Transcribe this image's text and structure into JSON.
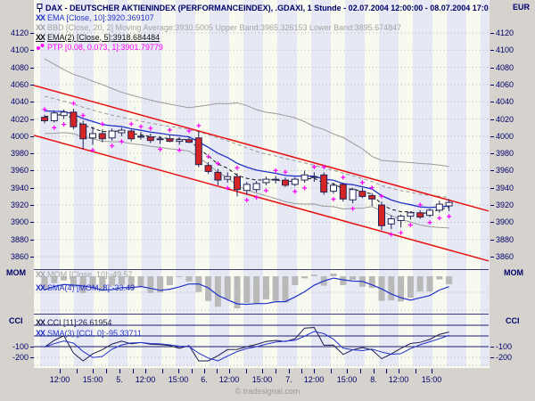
{
  "window": {
    "currency_label": "EUR",
    "copyright": "© tradesignal.com"
  },
  "header": {
    "title": "DAX - DEUTSCHER AKTIENINDEX (PERFORMANCEINDEX), .GDAXI, 1 Stunde - 02.07.2004 12:00:00 - 08.07.2004 17:0",
    "legend": [
      {
        "icon": "line-style-icon",
        "color": "#2130c8",
        "text": "EMA [Close, 10]:3920.369107"
      },
      {
        "icon": "line-style-icon",
        "color": "#a4a4a4",
        "text": "BBD [Close, 20, 2] Moving Average:3930.5005 Upper Band:3965.326153 Lower Band:3895.674847"
      },
      {
        "icon": "line-style-icon",
        "color": "#111111",
        "text": "EMA(2) [Close, 5]:3918.684484"
      },
      {
        "icon": "ptp-dots-icon",
        "color": "#ff00ff",
        "text": "PTP [0.08, 0.073, 1]:3901.79779"
      }
    ]
  },
  "panels": {
    "mom": {
      "label": "MOM",
      "rows": [
        {
          "color": "#a4a4a4",
          "text": "MOM [Close, 10]:-49.57"
        },
        {
          "color": "#2130c8",
          "text": "SMA(4) [MOM, 8]:-33.49"
        }
      ]
    },
    "cci": {
      "label": "CCI",
      "rows": [
        {
          "color": "#1c1c50",
          "text": "CCI [11]:26.61954"
        },
        {
          "color": "#2233cc",
          "text": "SMA(3) [CCI, 0]:-95.33711"
        }
      ],
      "ticks": [
        "-100",
        "-200"
      ]
    }
  },
  "axes": {
    "price_ticks": [
      "4120",
      "4100",
      "4080",
      "4060",
      "4040",
      "4020",
      "4000",
      "3980",
      "3960",
      "3940",
      "3920",
      "3900",
      "3880",
      "3860"
    ],
    "time_labels": [
      "12:00",
      "15:00",
      "5.",
      "12:00",
      "15:00",
      "6.",
      "12:00",
      "15:00",
      "7.",
      "12:00",
      "15:00",
      "8.",
      "12:00",
      "15:00"
    ]
  },
  "chart_data": {
    "type": "candlestick",
    "title": "DAX - DEUTSCHER AKTIENINDEX (PERFORMANCEINDEX)",
    "symbol": ".GDAXI",
    "interval": "1 Stunde",
    "range": "02.07.2004 12:00:00 - 08.07.2004 17:0",
    "ylim": [
      3860,
      4120
    ],
    "grid": true,
    "candles": [
      [
        4022,
        4025,
        4015,
        4018
      ],
      [
        4018,
        4030,
        4016,
        4027
      ],
      [
        4024,
        4031,
        4020,
        4028
      ],
      [
        4028,
        4032,
        4008,
        4011
      ],
      [
        4014,
        4018,
        3985,
        3997
      ],
      [
        3998,
        4011,
        3990,
        4003
      ],
      [
        4003,
        4008,
        3993,
        3997
      ],
      [
        3998,
        4009,
        3995,
        4006
      ],
      [
        4004,
        4010,
        4000,
        4007
      ],
      [
        4006,
        4008,
        3994,
        3997
      ],
      [
        4000,
        4005,
        3996,
        3999
      ],
      [
        3999,
        4003,
        3992,
        3995
      ],
      [
        3996,
        4000,
        3991,
        3997
      ],
      [
        3997,
        4001,
        3993,
        3994
      ],
      [
        3994,
        3999,
        3990,
        3996
      ],
      [
        3996,
        4000,
        3992,
        3993
      ],
      [
        3998,
        4006,
        3964,
        3967
      ],
      [
        3966,
        3970,
        3956,
        3959
      ],
      [
        3958,
        3962,
        3943,
        3949
      ],
      [
        3950,
        3958,
        3946,
        3953
      ],
      [
        3953,
        3957,
        3930,
        3938
      ],
      [
        3937,
        3947,
        3932,
        3944
      ],
      [
        3938,
        3948,
        3935,
        3945
      ],
      [
        3946,
        3953,
        3943,
        3950
      ],
      [
        3950,
        3954,
        3945,
        3949
      ],
      [
        3949,
        3952,
        3941,
        3943
      ],
      [
        3944,
        3952,
        3942,
        3950
      ],
      [
        3949,
        3960,
        3946,
        3955
      ],
      [
        3953,
        3958,
        3947,
        3952
      ],
      [
        3955,
        3958,
        3932,
        3935
      ],
      [
        3936,
        3946,
        3933,
        3943
      ],
      [
        3944,
        3946,
        3924,
        3927
      ],
      [
        3926,
        3940,
        3922,
        3938
      ],
      [
        3936,
        3940,
        3928,
        3930
      ],
      [
        3931,
        3934,
        3919,
        3927
      ],
      [
        3920,
        3924,
        3891,
        3896
      ],
      [
        3898,
        3908,
        3892,
        3904
      ],
      [
        3902,
        3909,
        3894,
        3907
      ],
      [
        3907,
        3913,
        3903,
        3911
      ],
      [
        3911,
        3914,
        3904,
        3906
      ],
      [
        3908,
        3916,
        3906,
        3914
      ],
      [
        3914,
        3925,
        3911,
        3921
      ],
      [
        3919,
        3927,
        3913,
        3923
      ]
    ],
    "offscreen_history_closes": [
      4090,
      4086,
      4082,
      4078,
      4073,
      4068,
      4063,
      4058,
      4053,
      4048,
      4044,
      4040,
      4036,
      4032,
      4029,
      4027,
      4025,
      4024,
      4023,
      4022
    ],
    "indicators": [
      {
        "name": "EMA",
        "params": "[Close, 10]",
        "value": 3920.369107,
        "color": "#2130c8",
        "style": "line"
      },
      {
        "name": "BBD",
        "params": "[Close, 20, 2]",
        "moving_average": 3930.5005,
        "upper_band": 3965.326153,
        "lower_band": 3895.674847,
        "color": "#9a9a9a",
        "style": "bands"
      },
      {
        "name": "EMA(2)",
        "params": "[Close, 5]",
        "value": 3918.684484,
        "color": "#111111",
        "style": "dashed-line"
      },
      {
        "name": "PTP",
        "params": "[0.08, 0.073, 1]",
        "value": 3901.79779,
        "color": "#ff00ff",
        "style": "plus-marks"
      },
      {
        "name": "MOM",
        "params": "[Close, 10]",
        "value": -49.57,
        "color": "#b9b9b9",
        "style": "histogram"
      },
      {
        "name": "SMA(4)",
        "params": "[MOM, 8]",
        "value": -33.49,
        "color": "#2130c8",
        "style": "line"
      },
      {
        "name": "CCI",
        "params": "[11]",
        "value": 26.61954,
        "color": "#1c1c50",
        "style": "line"
      },
      {
        "name": "SMA(3)",
        "params": "[CCI, 0]",
        "value": -95.33711,
        "color": "#2233cc",
        "style": "line"
      }
    ],
    "trend_channel": {
      "color": "#e81010",
      "upper": [
        [
          0,
          4059
        ],
        [
          510,
          3913
        ]
      ],
      "lower": [
        [
          0,
          4001
        ],
        [
          510,
          3855
        ]
      ]
    }
  }
}
